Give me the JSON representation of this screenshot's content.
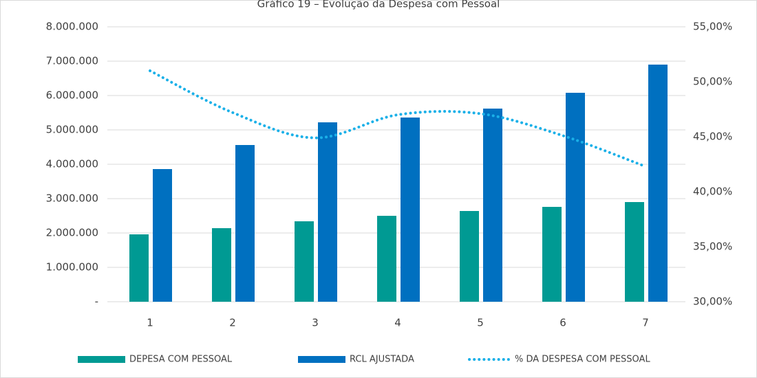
{
  "chart_data": {
    "type": "bar_line",
    "title": "Gráfico 19 – Evolução da Despesa com Pessoal",
    "categories": [
      "1",
      "2",
      "3",
      "4",
      "5",
      "6",
      "7"
    ],
    "series": [
      {
        "name": "DEPESA COM PESSOAL",
        "color": "#009a93",
        "type": "bar",
        "values": [
          1960000,
          2140000,
          2340000,
          2500000,
          2640000,
          2760000,
          2900000
        ]
      },
      {
        "name": "RCL AJUSTADA",
        "color": "#0070c0",
        "type": "bar",
        "values": [
          3860000,
          4560000,
          5220000,
          5360000,
          5620000,
          6080000,
          6900000
        ]
      },
      {
        "name": "% DA DESPESA COM PESSOAL",
        "color": "#1ab0e8",
        "type": "line",
        "axis": "y2",
        "values": [
          51.0,
          47.2,
          44.9,
          47.0,
          47.1,
          45.1,
          42.3
        ]
      }
    ],
    "ylim": [
      0,
      8000000
    ],
    "yticks": [
      {
        "value": 0,
        "label": "-"
      },
      {
        "value": 1000000,
        "label": "1.000.000"
      },
      {
        "value": 2000000,
        "label": "2.000.000"
      },
      {
        "value": 3000000,
        "label": "3.000.000"
      },
      {
        "value": 4000000,
        "label": "4.000.000"
      },
      {
        "value": 5000000,
        "label": "5.000.000"
      },
      {
        "value": 6000000,
        "label": "6.000.000"
      },
      {
        "value": 7000000,
        "label": "7.000.000"
      },
      {
        "value": 8000000,
        "label": "8.000.000"
      }
    ],
    "y2lim": [
      30,
      55
    ],
    "y2ticks": [
      {
        "value": 30,
        "label": "30,00%"
      },
      {
        "value": 35,
        "label": "35,00%"
      },
      {
        "value": 40,
        "label": "40,00%"
      },
      {
        "value": 45,
        "label": "45,00%"
      },
      {
        "value": 50,
        "label": "50,00%"
      },
      {
        "value": 55,
        "label": "55,00%"
      }
    ],
    "grid": true,
    "legend": "bottom"
  }
}
